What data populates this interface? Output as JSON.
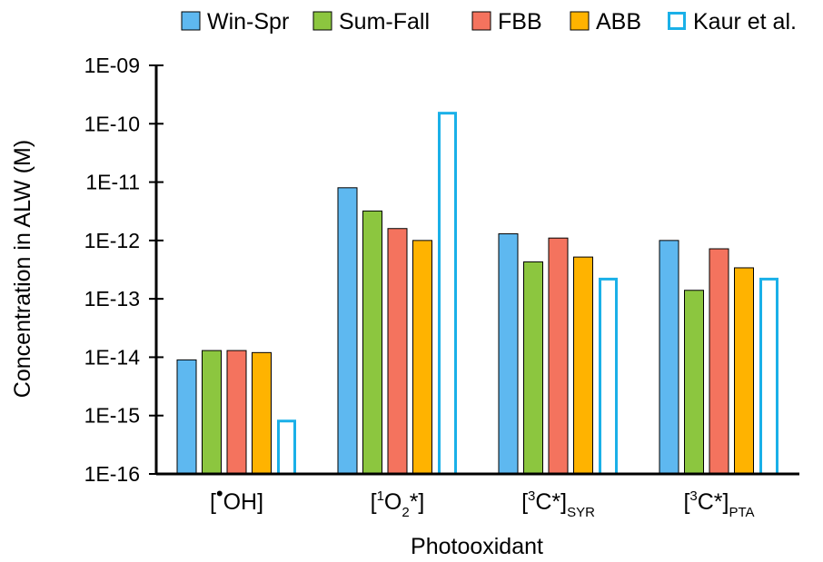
{
  "chart_data": {
    "type": "bar",
    "categories": [
      "[•OH]",
      "[1O2*]",
      "[3C*]SYR",
      "[3C*]PTA"
    ],
    "category_labels": [
      {
        "pre": "[",
        "sup": "•",
        "mid": "OH]",
        "sub": "",
        "post": ""
      },
      {
        "pre": "[",
        "sup": "1",
        "mid": "O",
        "sub": "2",
        "post": "*]"
      },
      {
        "pre": "[",
        "sup": "3",
        "mid": "C*]",
        "sub": "SYR",
        "post": ""
      },
      {
        "pre": "[",
        "sup": "3",
        "mid": "C*]",
        "sub": "PTA",
        "post": ""
      }
    ],
    "series": [
      {
        "name": "Win-Spr",
        "color": "#5eb8f0",
        "style": "filled",
        "values": [
          9e-15,
          8e-12,
          1.3e-12,
          1e-12
        ]
      },
      {
        "name": "Sum-Fall",
        "color": "#8cc63f",
        "style": "filled",
        "values": [
          1.3e-14,
          3.2e-12,
          4.3e-13,
          1.4e-13
        ]
      },
      {
        "name": "FBB",
        "color": "#f4735e",
        "style": "filled",
        "values": [
          1.3e-14,
          1.6e-12,
          1.1e-12,
          7.2e-13
        ]
      },
      {
        "name": "ABB",
        "color": "#ffb300",
        "style": "filled",
        "values": [
          1.2e-14,
          1e-12,
          5.2e-13,
          3.4e-13
        ]
      },
      {
        "name": "Kaur et al.",
        "color": "#1ab0e8",
        "style": "outline",
        "values": [
          8.5e-16,
          1.6e-10,
          2.3e-13,
          2.3e-13
        ]
      }
    ],
    "xlabel": "Photooxidant",
    "ylabel": "Concentration in ALW (M)",
    "yscale": "log",
    "ylim": [
      1e-16,
      1e-09
    ],
    "ytick_labels": [
      "1E-16",
      "1E-15",
      "1E-14",
      "1E-13",
      "1E-12",
      "1E-11",
      "1E-10",
      "1E-09"
    ],
    "grid": false,
    "legend_position": "top"
  }
}
